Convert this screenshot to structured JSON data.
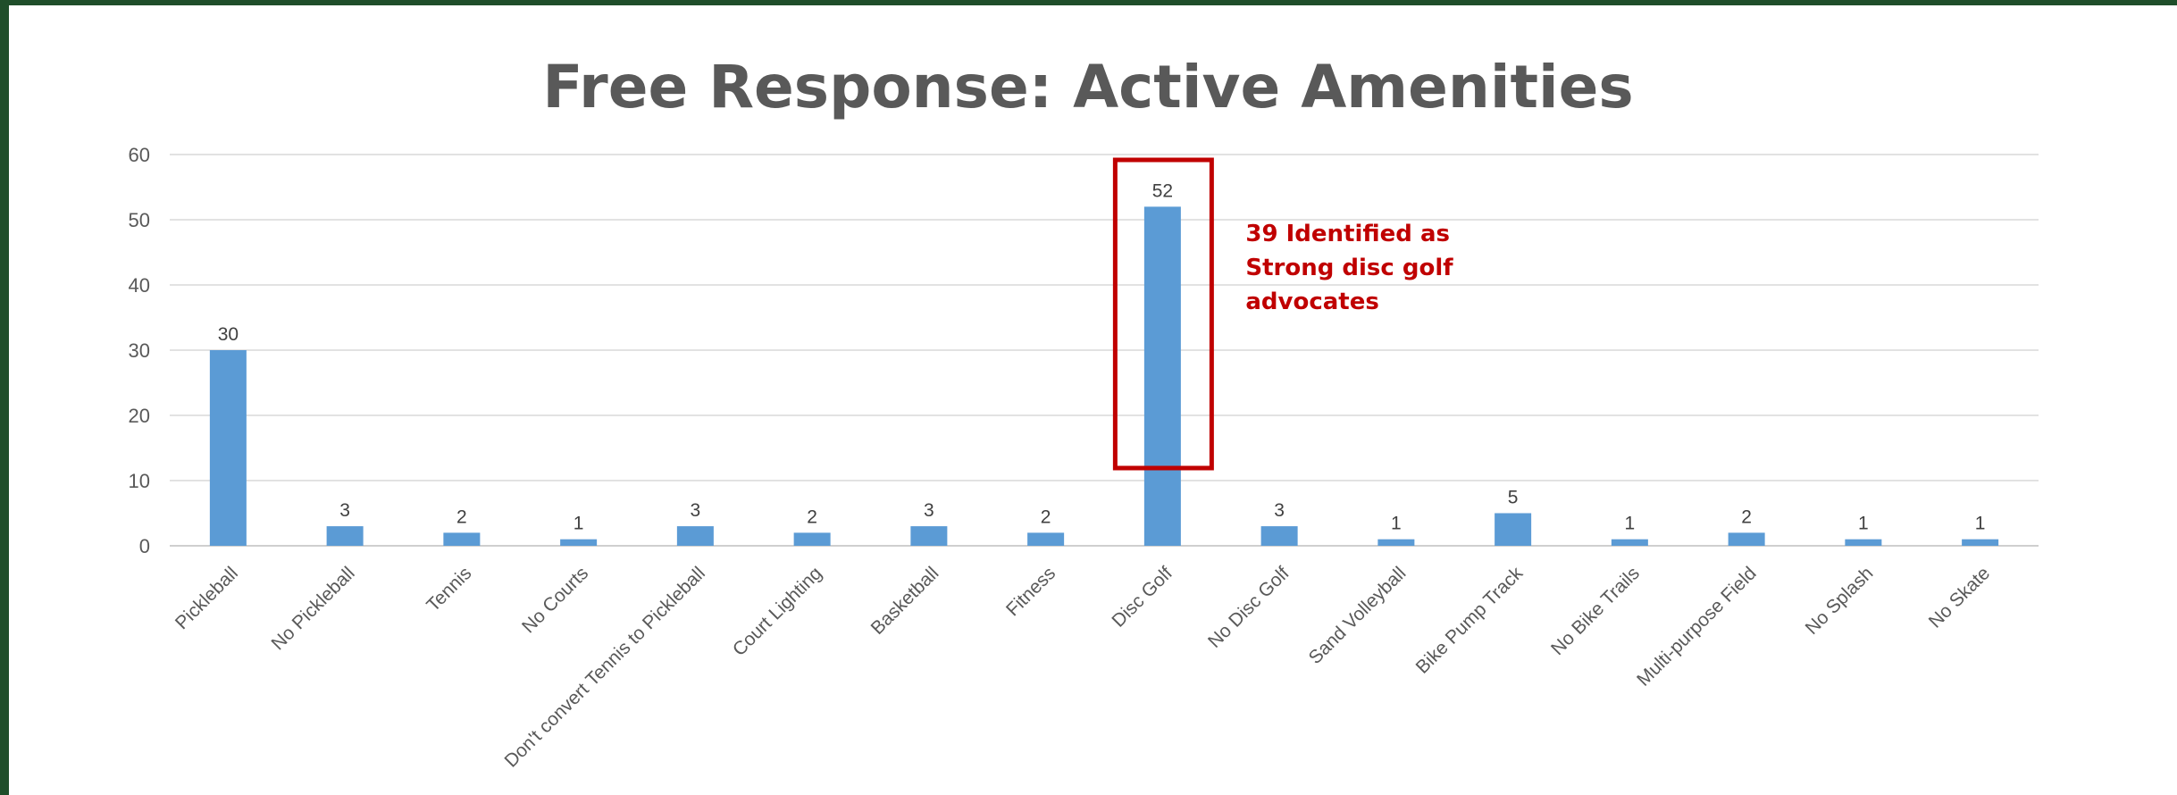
{
  "chart_data": {
    "type": "bar",
    "title": "Free Response: Active Amenities",
    "xlabel": "",
    "ylabel": "",
    "ylim": [
      0,
      60
    ],
    "yticks": [
      0,
      10,
      20,
      30,
      40,
      50,
      60
    ],
    "grid": true,
    "legend": "none",
    "categories": [
      "Pickleball",
      "No Pickleball",
      "Tennis",
      "No Courts",
      "Don't convert Tennis to Pickleball",
      "Court Lighting",
      "Basketball",
      "Fitness",
      "Disc Golf",
      "No Disc Golf",
      "Sand Volleyball",
      "Bike Pump Track",
      "No Bike Trails",
      "Multi-purpose Field",
      "No Splash",
      "No Skate"
    ],
    "values": [
      30,
      3,
      2,
      1,
      3,
      2,
      3,
      2,
      52,
      3,
      1,
      5,
      1,
      2,
      1,
      1
    ],
    "bar_color": "#5b9bd5",
    "highlight": {
      "category": "Disc Golf",
      "box_color": "#c00000",
      "annotation_lines": [
        "39 Identified as",
        "Strong disc golf",
        "advocates"
      ]
    }
  }
}
